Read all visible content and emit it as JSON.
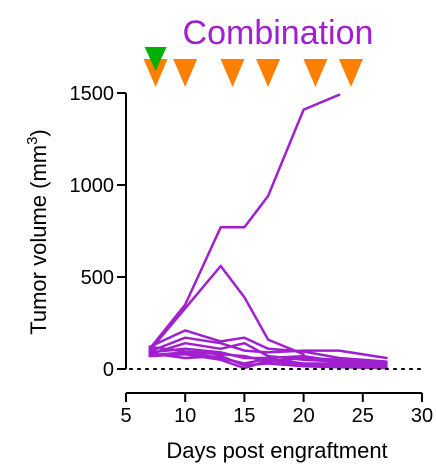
{
  "chart_data": {
    "type": "line",
    "title": "Combination",
    "xlabel": "Days post engraftment",
    "ylabel_main": "Tumor volume (mm",
    "ylabel_sup": "3",
    "ylabel_close": ")",
    "xlim": [
      5,
      30
    ],
    "ylim": [
      0,
      1500
    ],
    "x_ticks": [
      5,
      10,
      15,
      20,
      25,
      30
    ],
    "x_tick_labels": [
      "5",
      "10",
      "15",
      "20",
      "25",
      "30"
    ],
    "y_ticks": [
      0,
      500,
      1000,
      1500
    ],
    "y_tick_labels": [
      "0",
      "500",
      "1000",
      "1500"
    ],
    "grid": false,
    "reference_line": {
      "y": 0,
      "style": "dotted"
    },
    "colors": {
      "series": "#a020d0",
      "title": "#a020d0",
      "treatment_marker": "#ff8000",
      "first_marker": "#00b000"
    },
    "markers": {
      "orange_x": [
        7.5,
        10,
        14,
        17,
        21,
        24
      ],
      "green_x": [
        7.5
      ]
    },
    "series": [
      {
        "x": [
          7,
          10,
          13,
          15,
          17,
          20,
          23
        ],
        "values": [
          110,
          350,
          770,
          770,
          940,
          1410,
          1490
        ]
      },
      {
        "x": [
          7,
          10,
          13,
          15,
          17,
          20
        ],
        "values": [
          100,
          330,
          560,
          390,
          160,
          80
        ]
      },
      {
        "x": [
          7,
          10,
          13,
          15,
          17,
          20,
          23,
          27
        ],
        "values": [
          120,
          210,
          150,
          170,
          110,
          95,
          60,
          40
        ]
      },
      {
        "x": [
          7,
          10,
          13,
          15,
          17,
          20,
          23,
          27
        ],
        "values": [
          95,
          170,
          140,
          100,
          90,
          100,
          100,
          60
        ]
      },
      {
        "x": [
          7,
          10,
          13,
          15,
          17,
          20,
          23,
          27
        ],
        "values": [
          80,
          140,
          110,
          140,
          70,
          50,
          40,
          30
        ]
      },
      {
        "x": [
          7,
          10,
          13,
          15,
          17,
          20,
          23,
          27
        ],
        "values": [
          90,
          110,
          90,
          60,
          60,
          70,
          40,
          20
        ]
      },
      {
        "x": [
          7,
          10,
          13,
          15,
          17,
          20,
          23,
          27
        ],
        "values": [
          75,
          90,
          60,
          30,
          55,
          30,
          30,
          10
        ]
      },
      {
        "x": [
          7,
          10,
          13,
          15,
          17,
          20,
          23,
          27
        ],
        "values": [
          70,
          80,
          50,
          5,
          45,
          25,
          20,
          10
        ]
      },
      {
        "x": [
          7,
          10,
          13,
          15,
          17,
          20,
          23,
          27
        ],
        "values": [
          120,
          95,
          80,
          70,
          40,
          60,
          50,
          30
        ]
      },
      {
        "x": [
          7,
          10,
          13,
          15,
          17,
          20,
          23,
          27
        ],
        "values": [
          85,
          60,
          70,
          20,
          30,
          15,
          10,
          5
        ]
      }
    ]
  }
}
